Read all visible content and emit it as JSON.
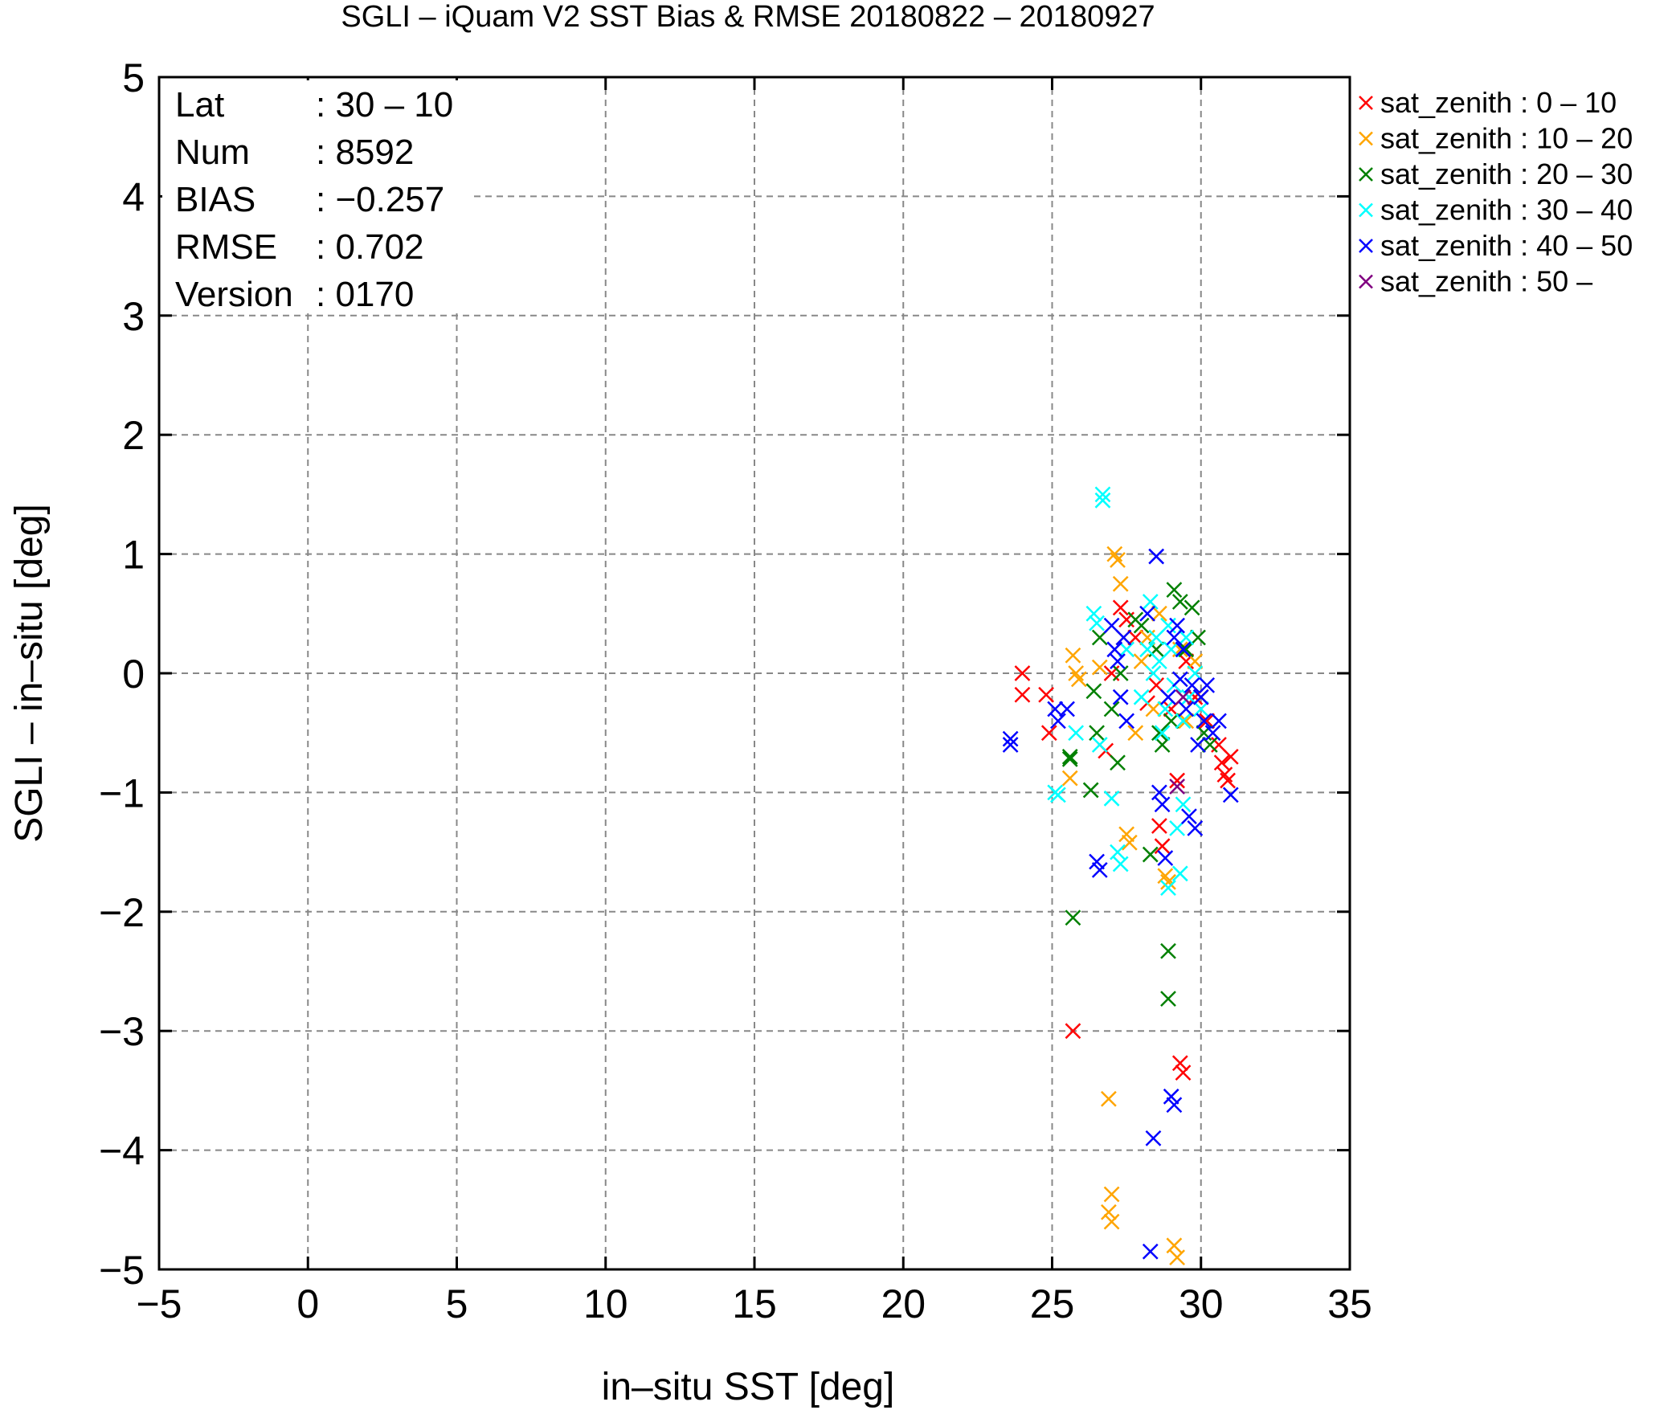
{
  "chart_data": {
    "type": "scatter",
    "title": "SGLI – iQuam V2 SST Bias & RMSE 20180822 – 20180927",
    "xlabel": "in–situ SST [deg]",
    "ylabel": "SGLI – in–situ [deg]",
    "xlim": [
      -5,
      35
    ],
    "ylim": [
      -5,
      5
    ],
    "xticks": [
      -5,
      0,
      5,
      10,
      15,
      20,
      25,
      30,
      35
    ],
    "yticks": [
      -5,
      -4,
      -3,
      -2,
      -1,
      0,
      1,
      2,
      3,
      4,
      5
    ],
    "xtick_labels": [
      "−5",
      "0",
      "5",
      "10",
      "15",
      "20",
      "25",
      "30",
      "35"
    ],
    "ytick_labels": [
      "−5",
      "−4",
      "−3",
      "−2",
      "−1",
      "0",
      "1",
      "2",
      "3",
      "4",
      "5"
    ],
    "grid": true,
    "legend_position": "right",
    "stats": [
      {
        "label": "Lat",
        "value": ": 30 – 10"
      },
      {
        "label": "Num",
        "value": ": 8592"
      },
      {
        "label": "BIAS",
        "value": ": −0.257"
      },
      {
        "label": "RMSE",
        "value": ": 0.702"
      },
      {
        "label": "Version",
        "value": ": 0170"
      }
    ],
    "series": [
      {
        "name": "sat_zenith :  0 – 10",
        "color": "#ff0000",
        "points": [
          [
            24.0,
            0.0
          ],
          [
            24.0,
            -0.18
          ],
          [
            24.8,
            -0.18
          ],
          [
            24.9,
            -0.5
          ],
          [
            25.7,
            -3.0
          ],
          [
            26.8,
            -0.65
          ],
          [
            27.0,
            0.0
          ],
          [
            27.3,
            0.55
          ],
          [
            27.5,
            0.45
          ],
          [
            27.8,
            0.3
          ],
          [
            28.2,
            -0.25
          ],
          [
            28.5,
            -0.1
          ],
          [
            28.6,
            -1.28
          ],
          [
            28.7,
            -1.45
          ],
          [
            29.0,
            -0.3
          ],
          [
            29.2,
            -0.9
          ],
          [
            29.3,
            -3.27
          ],
          [
            29.4,
            -3.35
          ],
          [
            29.5,
            0.1
          ],
          [
            29.8,
            -0.2
          ],
          [
            30.2,
            -0.4
          ],
          [
            30.6,
            -0.6
          ],
          [
            30.7,
            -0.75
          ],
          [
            30.8,
            -0.85
          ],
          [
            30.9,
            -0.9
          ],
          [
            31.0,
            -0.7
          ]
        ]
      },
      {
        "name": "sat_zenith : 10 – 20",
        "color": "#ffa500",
        "points": [
          [
            25.6,
            -0.88
          ],
          [
            25.7,
            0.15
          ],
          [
            25.8,
            0.0
          ],
          [
            25.9,
            -0.05
          ],
          [
            26.6,
            0.05
          ],
          [
            26.9,
            -3.57
          ],
          [
            27.0,
            -4.37
          ],
          [
            26.9,
            -4.52
          ],
          [
            27.0,
            -4.6
          ],
          [
            27.1,
            1.0
          ],
          [
            27.2,
            0.95
          ],
          [
            27.3,
            0.75
          ],
          [
            27.4,
            0.3
          ],
          [
            27.5,
            -1.35
          ],
          [
            27.6,
            -1.42
          ],
          [
            28.0,
            0.1
          ],
          [
            28.4,
            -0.3
          ],
          [
            28.6,
            0.5
          ],
          [
            28.8,
            -1.7
          ],
          [
            28.9,
            -1.75
          ],
          [
            29.1,
            -4.8
          ],
          [
            29.2,
            -4.9
          ],
          [
            29.3,
            0.2
          ],
          [
            29.5,
            -0.4
          ],
          [
            29.8,
            0.1
          ],
          [
            30.0,
            -0.2
          ],
          [
            28.2,
            0.3
          ],
          [
            27.8,
            -0.5
          ]
        ]
      },
      {
        "name": "sat_zenith : 20 – 30",
        "color": "#008000",
        "points": [
          [
            25.6,
            -0.7
          ],
          [
            25.6,
            -0.72
          ],
          [
            25.7,
            -2.05
          ],
          [
            26.3,
            -0.98
          ],
          [
            26.4,
            -0.15
          ],
          [
            26.5,
            -0.5
          ],
          [
            26.6,
            0.3
          ],
          [
            27.0,
            -0.3
          ],
          [
            27.2,
            -0.75
          ],
          [
            27.3,
            0.0
          ],
          [
            27.8,
            0.45
          ],
          [
            28.0,
            0.4
          ],
          [
            28.3,
            -1.52
          ],
          [
            28.6,
            -0.5
          ],
          [
            28.7,
            -0.6
          ],
          [
            28.9,
            -2.33
          ],
          [
            28.9,
            -2.73
          ],
          [
            29.1,
            0.7
          ],
          [
            29.3,
            0.6
          ],
          [
            29.5,
            0.2
          ],
          [
            29.7,
            0.55
          ],
          [
            29.9,
            0.3
          ],
          [
            30.1,
            -0.5
          ],
          [
            30.3,
            -0.6
          ],
          [
            29.0,
            -0.4
          ],
          [
            28.5,
            0.2
          ]
        ]
      },
      {
        "name": "sat_zenith : 30 – 40",
        "color": "#00ffff",
        "points": [
          [
            25.1,
            -1.0
          ],
          [
            25.2,
            -1.02
          ],
          [
            25.8,
            -0.5
          ],
          [
            26.4,
            0.5
          ],
          [
            26.5,
            0.42
          ],
          [
            26.6,
            -0.6
          ],
          [
            26.7,
            1.5
          ],
          [
            26.7,
            1.45
          ],
          [
            27.0,
            -1.05
          ],
          [
            27.2,
            -1.5
          ],
          [
            27.3,
            -1.6
          ],
          [
            27.5,
            0.2
          ],
          [
            28.0,
            -0.2
          ],
          [
            28.3,
            0.6
          ],
          [
            28.4,
            0.0
          ],
          [
            28.5,
            0.3
          ],
          [
            28.6,
            0.1
          ],
          [
            28.8,
            -0.3
          ],
          [
            28.9,
            -1.8
          ],
          [
            29.0,
            0.2
          ],
          [
            29.1,
            -0.1
          ],
          [
            29.2,
            -1.3
          ],
          [
            29.3,
            -1.68
          ],
          [
            29.4,
            -1.1
          ],
          [
            29.5,
            0.3
          ],
          [
            29.6,
            -0.2
          ],
          [
            29.8,
            0.0
          ],
          [
            30.0,
            -0.3
          ],
          [
            28.7,
            -0.5
          ],
          [
            28.2,
            0.2
          ],
          [
            29.4,
            -0.4
          ],
          [
            28.9,
            0.4
          ]
        ]
      },
      {
        "name": "sat_zenith : 40 – 50",
        "color": "#0000ff",
        "points": [
          [
            23.6,
            -0.55
          ],
          [
            23.6,
            -0.6
          ],
          [
            25.1,
            -0.3
          ],
          [
            25.2,
            -0.4
          ],
          [
            25.5,
            -0.3
          ],
          [
            26.5,
            -1.58
          ],
          [
            26.6,
            -1.65
          ],
          [
            27.0,
            0.4
          ],
          [
            27.1,
            0.2
          ],
          [
            27.2,
            0.1
          ],
          [
            27.3,
            -0.2
          ],
          [
            27.4,
            0.3
          ],
          [
            27.5,
            -0.4
          ],
          [
            28.2,
            0.5
          ],
          [
            28.4,
            -3.9
          ],
          [
            28.3,
            -4.85
          ],
          [
            28.5,
            0.98
          ],
          [
            28.6,
            -1.0
          ],
          [
            28.7,
            -1.1
          ],
          [
            28.8,
            -1.55
          ],
          [
            29.0,
            -3.55
          ],
          [
            29.1,
            -3.62
          ],
          [
            29.2,
            0.4
          ],
          [
            29.3,
            -0.05
          ],
          [
            29.4,
            0.2
          ],
          [
            29.5,
            -0.3
          ],
          [
            29.6,
            -1.2
          ],
          [
            29.7,
            -0.1
          ],
          [
            29.8,
            -1.3
          ],
          [
            29.9,
            -0.6
          ],
          [
            30.0,
            -0.2
          ],
          [
            30.1,
            -0.4
          ],
          [
            30.2,
            -0.1
          ],
          [
            30.4,
            -0.5
          ],
          [
            30.6,
            -0.4
          ],
          [
            31.0,
            -1.02
          ],
          [
            28.9,
            -0.2
          ],
          [
            29.1,
            0.3
          ]
        ]
      },
      {
        "name": "sat_zenith : 50 –",
        "color": "#800080",
        "points": [
          [
            29.2,
            -0.95
          ],
          [
            29.4,
            -0.2
          ]
        ]
      }
    ]
  }
}
